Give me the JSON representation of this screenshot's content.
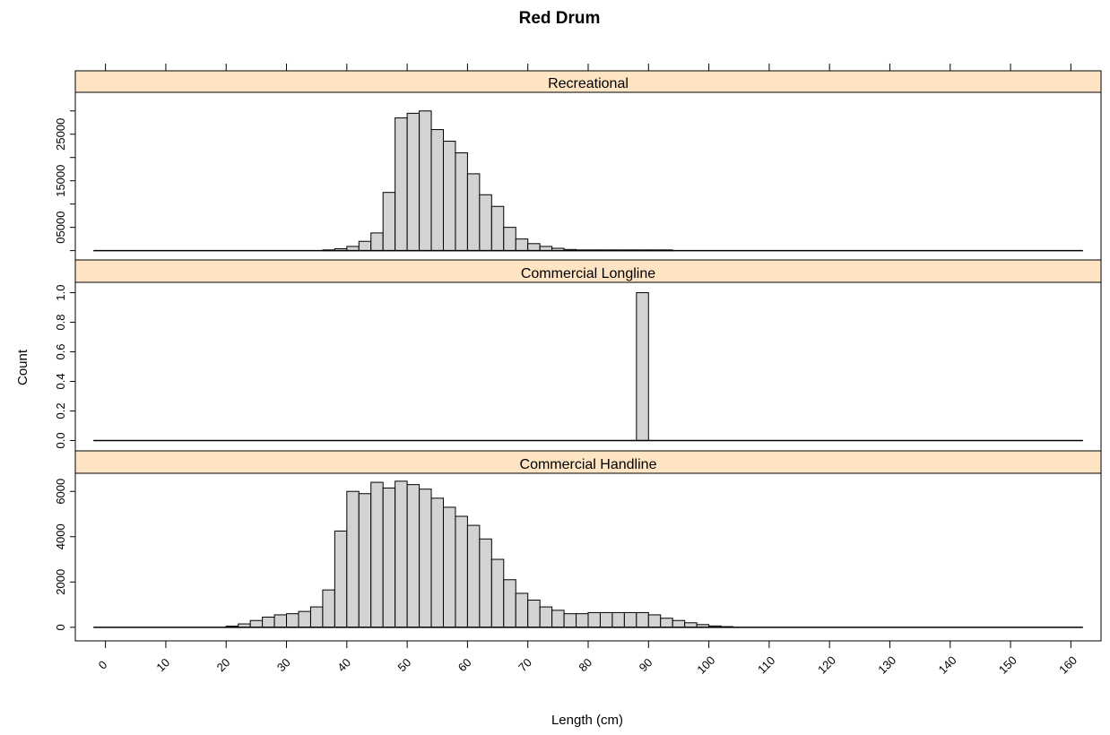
{
  "chart_data": {
    "type": "bar",
    "title": "Red Drum",
    "xlabel": "Length (cm)",
    "ylabel": "Count",
    "xlim": [
      -5,
      165
    ],
    "x_ticks": [
      "0",
      "10",
      "20",
      "30",
      "40",
      "50",
      "60",
      "70",
      "80",
      "90",
      "100",
      "110",
      "120",
      "130",
      "140",
      "150",
      "160"
    ],
    "bin_width": 2,
    "strip_fill": "#ffe4c4",
    "bar_fill": "#d3d3d3",
    "panels": [
      {
        "name": "Recreational",
        "ylim": [
          -2000,
          34000
        ],
        "y_ticks": [
          "05000",
          "15000",
          "25000"
        ],
        "y_tick_values": [
          5000,
          15000,
          25000
        ],
        "y_tick_minor": [
          0,
          10000,
          20000,
          30000
        ],
        "y_tick_minor_labels": [
          "0",
          "10000",
          "20000",
          "30000"
        ],
        "baseline_range": [
          -2,
          162
        ],
        "bins": [
          {
            "x": 36,
            "y": 150
          },
          {
            "x": 38,
            "y": 400
          },
          {
            "x": 40,
            "y": 900
          },
          {
            "x": 42,
            "y": 2000
          },
          {
            "x": 44,
            "y": 3800
          },
          {
            "x": 46,
            "y": 12500
          },
          {
            "x": 48,
            "y": 28500
          },
          {
            "x": 50,
            "y": 29500
          },
          {
            "x": 52,
            "y": 30000
          },
          {
            "x": 54,
            "y": 26000
          },
          {
            "x": 56,
            "y": 23500
          },
          {
            "x": 58,
            "y": 21000
          },
          {
            "x": 60,
            "y": 16500
          },
          {
            "x": 62,
            "y": 12000
          },
          {
            "x": 64,
            "y": 9500
          },
          {
            "x": 66,
            "y": 5000
          },
          {
            "x": 68,
            "y": 2500
          },
          {
            "x": 70,
            "y": 1500
          },
          {
            "x": 72,
            "y": 900
          },
          {
            "x": 74,
            "y": 500
          },
          {
            "x": 76,
            "y": 250
          },
          {
            "x": 78,
            "y": 150
          },
          {
            "x": 80,
            "y": 150
          },
          {
            "x": 82,
            "y": 150
          },
          {
            "x": 84,
            "y": 150
          },
          {
            "x": 86,
            "y": 150
          },
          {
            "x": 88,
            "y": 150
          },
          {
            "x": 90,
            "y": 150
          },
          {
            "x": 92,
            "y": 150
          }
        ]
      },
      {
        "name": "Commercial Longline",
        "ylim": [
          -0.07,
          1.07
        ],
        "y_ticks": [
          "0.0",
          "0.2",
          "0.4",
          "0.6",
          "0.8",
          "1.0"
        ],
        "y_tick_values": [
          0,
          0.2,
          0.4,
          0.6,
          0.8,
          1.0
        ],
        "baseline_range": [
          -2,
          162
        ],
        "bins": [
          {
            "x": 88,
            "y": 1
          }
        ]
      },
      {
        "name": "Commercial Handline",
        "ylim": [
          -600,
          6800
        ],
        "y_ticks": [
          "0",
          "2000",
          "4000",
          "6000"
        ],
        "y_tick_values": [
          0,
          2000,
          4000,
          6000
        ],
        "baseline_range": [
          -2,
          162
        ],
        "bins": [
          {
            "x": 20,
            "y": 50
          },
          {
            "x": 22,
            "y": 150
          },
          {
            "x": 24,
            "y": 300
          },
          {
            "x": 26,
            "y": 450
          },
          {
            "x": 28,
            "y": 550
          },
          {
            "x": 30,
            "y": 600
          },
          {
            "x": 32,
            "y": 700
          },
          {
            "x": 34,
            "y": 900
          },
          {
            "x": 36,
            "y": 1650
          },
          {
            "x": 38,
            "y": 4250
          },
          {
            "x": 40,
            "y": 6000
          },
          {
            "x": 42,
            "y": 5900
          },
          {
            "x": 44,
            "y": 6400
          },
          {
            "x": 46,
            "y": 6150
          },
          {
            "x": 48,
            "y": 6450
          },
          {
            "x": 50,
            "y": 6300
          },
          {
            "x": 52,
            "y": 6100
          },
          {
            "x": 54,
            "y": 5700
          },
          {
            "x": 56,
            "y": 5300
          },
          {
            "x": 58,
            "y": 4900
          },
          {
            "x": 60,
            "y": 4500
          },
          {
            "x": 62,
            "y": 3900
          },
          {
            "x": 64,
            "y": 3000
          },
          {
            "x": 66,
            "y": 2100
          },
          {
            "x": 68,
            "y": 1500
          },
          {
            "x": 70,
            "y": 1200
          },
          {
            "x": 72,
            "y": 900
          },
          {
            "x": 74,
            "y": 750
          },
          {
            "x": 76,
            "y": 600
          },
          {
            "x": 78,
            "y": 600
          },
          {
            "x": 80,
            "y": 650
          },
          {
            "x": 82,
            "y": 650
          },
          {
            "x": 84,
            "y": 650
          },
          {
            "x": 86,
            "y": 650
          },
          {
            "x": 88,
            "y": 650
          },
          {
            "x": 90,
            "y": 550
          },
          {
            "x": 92,
            "y": 400
          },
          {
            "x": 94,
            "y": 300
          },
          {
            "x": 96,
            "y": 200
          },
          {
            "x": 98,
            "y": 120
          },
          {
            "x": 100,
            "y": 60
          },
          {
            "x": 102,
            "y": 30
          }
        ]
      }
    ]
  }
}
